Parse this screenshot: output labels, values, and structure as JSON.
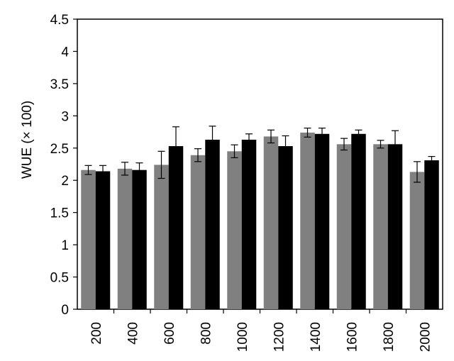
{
  "chart_data": {
    "type": "bar",
    "title": "",
    "xlabel": "",
    "ylabel": "WUE (× 100)",
    "ylim": [
      0,
      4.5
    ],
    "yticks": [
      "0",
      "0.5",
      "1",
      "1.5",
      "2",
      "2.5",
      "3",
      "3.5",
      "4",
      "4.5"
    ],
    "categories": [
      "200",
      "400",
      "600",
      "800",
      "1000",
      "1200",
      "1400",
      "1600",
      "1800",
      "2000"
    ],
    "grid": false,
    "legend": "none",
    "series": [
      {
        "color": "#808080",
        "values": [
          2.16,
          2.18,
          2.24,
          2.39,
          2.45,
          2.68,
          2.74,
          2.56,
          2.56,
          2.13
        ],
        "errors": [
          0.07,
          0.1,
          0.21,
          0.1,
          0.1,
          0.1,
          0.07,
          0.09,
          0.06,
          0.16
        ]
      },
      {
        "color": "#000000",
        "values": [
          2.14,
          2.16,
          2.53,
          2.63,
          2.63,
          2.53,
          2.72,
          2.72,
          2.56,
          2.31
        ],
        "errors": [
          0.09,
          0.11,
          0.3,
          0.21,
          0.09,
          0.16,
          0.09,
          0.06,
          0.21,
          0.06
        ]
      }
    ]
  }
}
